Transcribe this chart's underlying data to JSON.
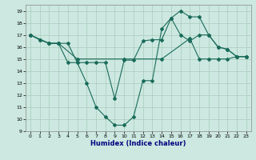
{
  "xlabel": "Humidex (Indice chaleur)",
  "background_color": "#cce8e0",
  "grid_color": "#aaccbb",
  "line_color": "#1a6b5a",
  "xlim": [
    -0.5,
    23.5
  ],
  "ylim": [
    9,
    19.5
  ],
  "yticks": [
    9,
    10,
    11,
    12,
    13,
    14,
    15,
    16,
    17,
    18,
    19
  ],
  "xticks": [
    0,
    1,
    2,
    3,
    4,
    5,
    6,
    7,
    8,
    9,
    10,
    11,
    12,
    13,
    14,
    15,
    16,
    17,
    18,
    19,
    20,
    21,
    22,
    23
  ],
  "line1_x": [
    0,
    1,
    2,
    3,
    4,
    5,
    6,
    7,
    8,
    9,
    10,
    11,
    12,
    13,
    14,
    15,
    16,
    17,
    18,
    19,
    20,
    21,
    22,
    23
  ],
  "line1_y": [
    17.0,
    16.6,
    16.3,
    16.3,
    16.3,
    14.7,
    14.7,
    14.7,
    14.7,
    11.7,
    14.9,
    14.9,
    16.5,
    16.6,
    16.6,
    18.4,
    17.0,
    16.5,
    17.0,
    17.0,
    16.0,
    15.8,
    15.2,
    15.2
  ],
  "line2_x": [
    0,
    1,
    2,
    3,
    4,
    5,
    6,
    7,
    8,
    9,
    10,
    11,
    12,
    13,
    14,
    15,
    16,
    17,
    18,
    19,
    20,
    21,
    22,
    23
  ],
  "line2_y": [
    17.0,
    16.6,
    16.3,
    16.3,
    14.7,
    14.7,
    13.0,
    11.0,
    10.2,
    9.5,
    9.5,
    10.2,
    13.2,
    13.2,
    17.5,
    18.4,
    19.0,
    18.5,
    18.5,
    17.0,
    16.0,
    15.8,
    15.2,
    15.2
  ],
  "line3_x": [
    0,
    2,
    3,
    5,
    10,
    14,
    17,
    18,
    19,
    20,
    21,
    22,
    23
  ],
  "line3_y": [
    17.0,
    16.3,
    16.3,
    15.0,
    15.0,
    15.0,
    16.7,
    15.0,
    15.0,
    15.0,
    15.0,
    15.2,
    15.2
  ]
}
